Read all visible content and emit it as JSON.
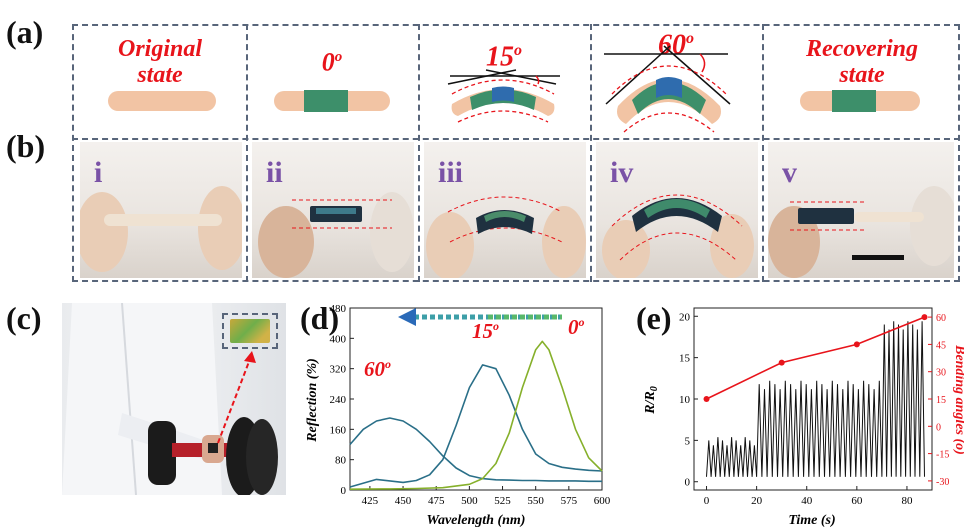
{
  "labels": {
    "a": "(a)",
    "b": "(b)",
    "c": "(c)",
    "d": "(d)",
    "e": "(e)"
  },
  "states": [
    "Original state",
    "0o",
    "15o",
    "60o",
    "Recovering state"
  ],
  "state_titles": [
    {
      "text": "Original",
      "line2": "state",
      "sup": ""
    },
    {
      "text": "0",
      "line2": "",
      "sup": "o"
    },
    {
      "text": "15",
      "line2": "",
      "sup": "o"
    },
    {
      "text": "60",
      "line2": "",
      "sup": "o"
    },
    {
      "text": "Recovering",
      "line2": "state",
      "sup": ""
    }
  ],
  "roman": [
    "i",
    "ii",
    "iii",
    "iv",
    "v"
  ],
  "colors": {
    "red": "#e8141b",
    "border": "#58657a",
    "purple": "#7a52a6",
    "skin": "#f2c4a4",
    "sensor": "#3d8f6a",
    "sensor_blue": "#2f6cae",
    "blue_line": "#2a6f88",
    "green_line": "#86b02b"
  },
  "chart_data": [
    {
      "type": "line",
      "xlabel": "Wavelength (nm)",
      "ylabel": "Reflection (%)",
      "xlim": [
        410,
        600
      ],
      "ylim": [
        0,
        480
      ],
      "xticks": [
        425,
        450,
        475,
        500,
        525,
        550,
        575,
        600
      ],
      "yticks": [
        0,
        80,
        160,
        240,
        320,
        400,
        480
      ],
      "annotations": [
        {
          "text": "60",
          "sup": "o"
        },
        {
          "text": "15",
          "sup": "o"
        },
        {
          "text": "0",
          "sup": "o"
        }
      ],
      "arrow": "left",
      "series": [
        {
          "x": [
            410,
            420,
            430,
            440,
            450,
            460,
            470,
            480,
            490,
            500,
            510,
            520,
            530,
            540,
            550,
            560,
            570,
            580,
            590,
            600
          ],
          "y": [
            120,
            160,
            182,
            190,
            182,
            160,
            128,
            90,
            58,
            38,
            30,
            27,
            26,
            25,
            25,
            24,
            24,
            24,
            23,
            23
          ]
        },
        {
          "x": [
            410,
            430,
            450,
            460,
            470,
            480,
            490,
            500,
            510,
            520,
            530,
            540,
            550,
            560,
            570,
            580,
            590,
            600
          ],
          "y": [
            8,
            28,
            20,
            25,
            40,
            80,
            170,
            270,
            330,
            320,
            250,
            160,
            95,
            70,
            60,
            55,
            52,
            50
          ]
        },
        {
          "x": [
            410,
            440,
            460,
            480,
            500,
            510,
            520,
            530,
            540,
            550,
            555,
            560,
            570,
            580,
            590,
            600
          ],
          "y": [
            2,
            3,
            4,
            6,
            15,
            30,
            70,
            150,
            270,
            370,
            392,
            370,
            270,
            160,
            85,
            50
          ]
        }
      ]
    },
    {
      "type": "line",
      "xlabel": "Time (s)",
      "ylabel": "R/R0",
      "y2label": "Bending angles (o)",
      "xlim": [
        -5,
        90
      ],
      "ylim": [
        -1,
        21
      ],
      "y2lim": [
        -35,
        65
      ],
      "xticks": [
        0,
        20,
        40,
        60,
        80
      ],
      "yticks": [
        0,
        5,
        10,
        15,
        20
      ],
      "y2ticks": [
        -30,
        -15,
        0,
        15,
        30,
        45,
        60
      ],
      "segments": [
        {
          "x_start": 0,
          "x_end": 20,
          "base": 0.6,
          "peak": 5.0,
          "cycles": 11
        },
        {
          "x_start": 20,
          "x_end": 70,
          "base": 0.6,
          "peak": 11.8,
          "cycles": 24
        },
        {
          "x_start": 70,
          "x_end": 87,
          "base": 0.6,
          "peak": 19.0,
          "cycles": 9
        }
      ],
      "angle_points": {
        "x": [
          0,
          30,
          60,
          87
        ],
        "y": [
          15,
          35,
          45,
          60
        ]
      }
    }
  ]
}
